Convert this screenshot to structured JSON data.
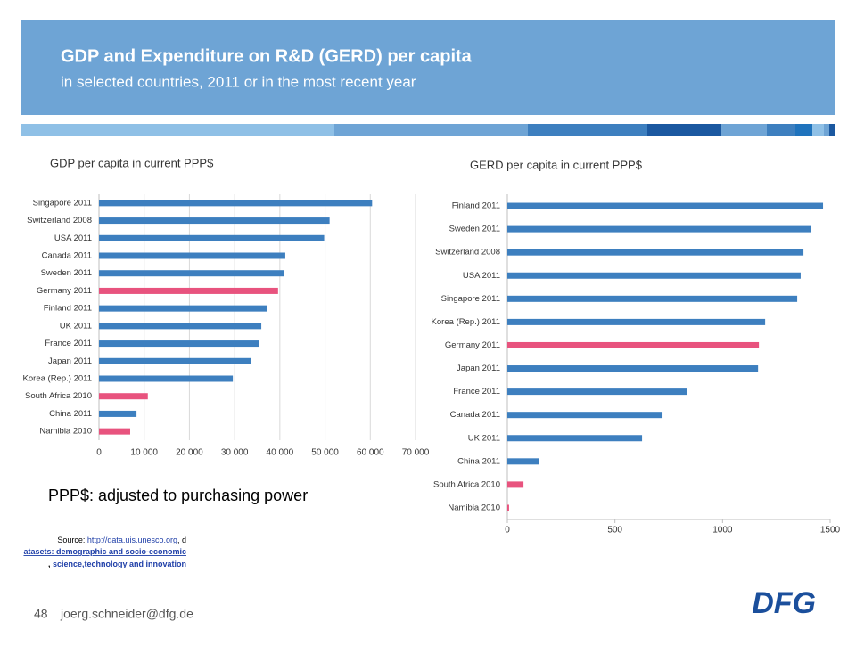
{
  "slide": {
    "title": "GDP and Expenditure on R&D (GERD) per capita",
    "subtitle": "in selected countries, 2011 or in the most recent year",
    "note": "PPP$: adjusted to purchasing power",
    "source": [
      "Source: ",
      "http://data.uis.unesco.org",
      ", d",
      "atasets: demographic and socio-economic",
      ", ",
      "science,technology and innovation"
    ],
    "page_number": "48",
    "email": "joerg.schneider@dfg.de",
    "logo": "DFG"
  },
  "chart_data": [
    {
      "type": "hbar",
      "title": "GDP per capita in current PPP$",
      "categories": [
        "Singapore 2011",
        "Switzerland 2008",
        "USA 2011",
        "Canada 2011",
        "Sweden 2011",
        "Germany 2011",
        "Finland 2011",
        "UK 2011",
        "France 2011",
        "Japan 2011",
        "Korea (Rep.) 2011",
        "South Africa 2010",
        "China 2011",
        "Namibia 2010"
      ],
      "values": [
        60400,
        51000,
        49800,
        41200,
        41000,
        39600,
        37100,
        35900,
        35300,
        33700,
        29600,
        10800,
        8300,
        6900
      ],
      "colors": [
        "#3d7fbf",
        "#3d7fbf",
        "#3d7fbf",
        "#3d7fbf",
        "#3d7fbf",
        "#e8537e",
        "#3d7fbf",
        "#3d7fbf",
        "#3d7fbf",
        "#3d7fbf",
        "#3d7fbf",
        "#e8537e",
        "#3d7fbf",
        "#e8537e"
      ],
      "xlim": [
        0,
        70000
      ],
      "xticks": [
        0,
        {
          "value": 10000,
          "label": "10 000"
        },
        {
          "value": 20000,
          "label": "20 000"
        },
        {
          "value": 30000,
          "label": "30 000"
        },
        {
          "value": 40000,
          "label": "40 000"
        },
        {
          "value": 50000,
          "label": "50 000"
        },
        {
          "value": 60000,
          "label": "60 000"
        },
        {
          "value": 70000,
          "label": "70 000"
        }
      ],
      "grid": true
    },
    {
      "type": "hbar",
      "title": "GERD per capita in current PPP$",
      "categories": [
        "Finland 2011",
        "Sweden 2011",
        "Switzerland 2008",
        "USA 2011",
        "Singapore 2011",
        "Korea (Rep.) 2011",
        "Germany 2011",
        "Japan 2011",
        "France 2011",
        "Canada 2011",
        "UK 2011",
        "China 2011",
        "South Africa 2010",
        "Namibia 2010"
      ],
      "values": [
        1467,
        1413,
        1376,
        1363,
        1347,
        1198,
        1169,
        1165,
        837,
        717,
        626,
        149,
        75,
        8
      ],
      "colors": [
        "#3d7fbf",
        "#3d7fbf",
        "#3d7fbf",
        "#3d7fbf",
        "#3d7fbf",
        "#3d7fbf",
        "#e8537e",
        "#3d7fbf",
        "#3d7fbf",
        "#3d7fbf",
        "#3d7fbf",
        "#3d7fbf",
        "#e8537e",
        "#e8537e"
      ],
      "xlim": [
        0,
        1500
      ],
      "xticks": [
        0,
        500,
        1000,
        1500
      ],
      "grid": false
    }
  ]
}
